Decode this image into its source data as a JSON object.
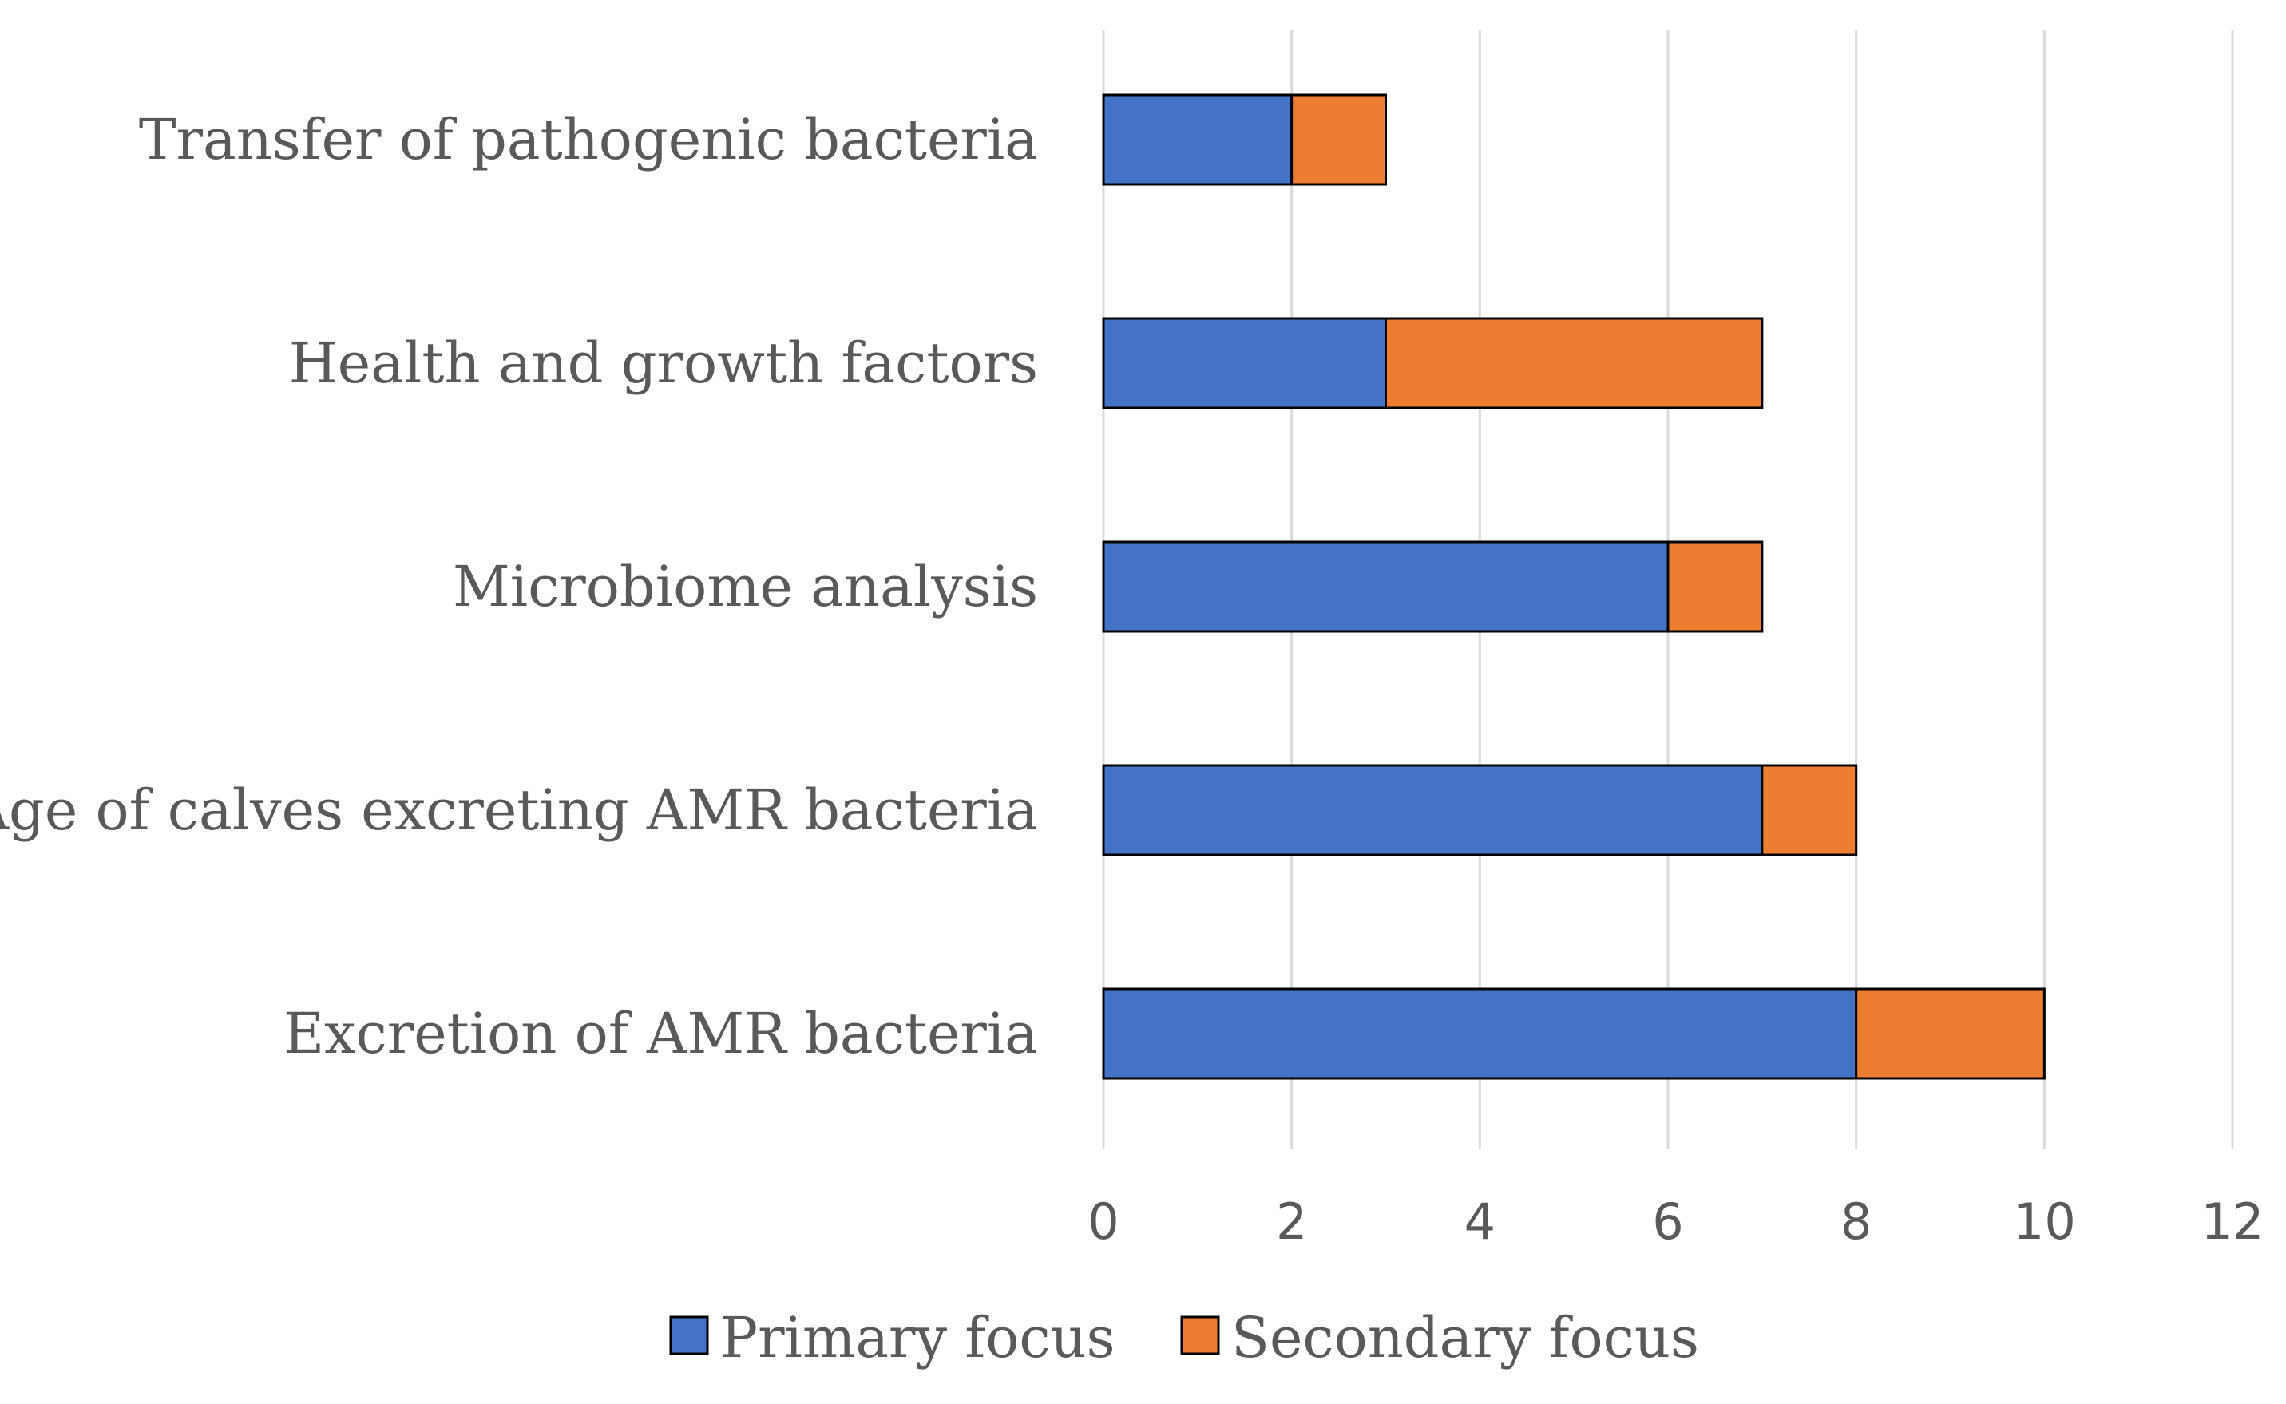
{
  "chart_data": {
    "type": "bar",
    "orientation": "horizontal",
    "stacked": true,
    "categories": [
      "Transfer of pathogenic bacteria",
      "Health and growth factors",
      "Microbiome analysis",
      "Age of calves excreting AMR bacteria",
      "Excretion of AMR bacteria"
    ],
    "series": [
      {
        "name": "Primary focus",
        "color": "#4472c4",
        "values": [
          2,
          3,
          6,
          7,
          8
        ]
      },
      {
        "name": "Secondary focus",
        "color": "#ed7d31",
        "values": [
          1,
          4,
          1,
          1,
          2
        ]
      }
    ],
    "xlim": [
      0,
      12
    ],
    "xticks": [
      "0",
      "2",
      "4",
      "6",
      "8",
      "10",
      "12"
    ],
    "grid": true,
    "legend": "bottom",
    "title": "",
    "xlabel": "",
    "ylabel": ""
  }
}
